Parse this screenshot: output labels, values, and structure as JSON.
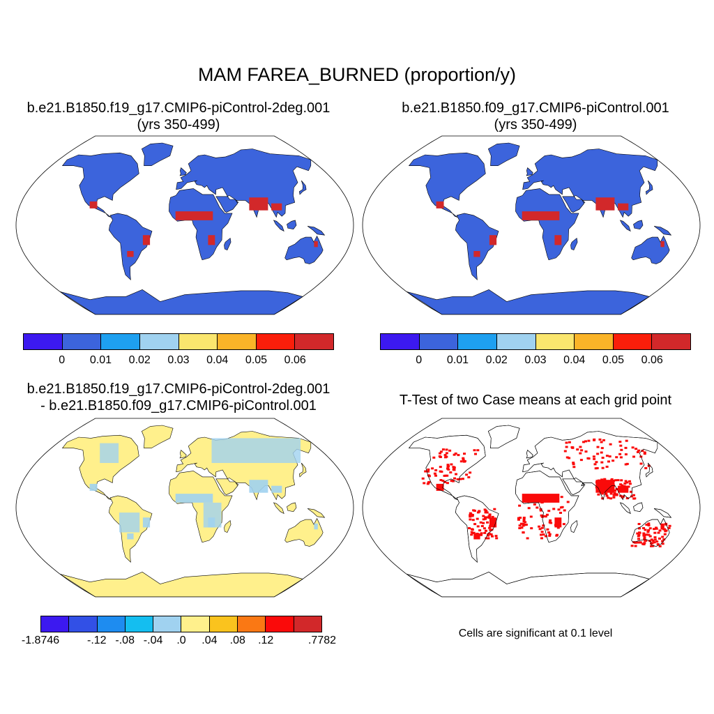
{
  "title": "MAM FAREA_BURNED (proportion/y)",
  "panels": [
    {
      "title_line1": "b.e21.B1850.f19_g17.CMIP6-piControl-2deg.001",
      "title_line2": "(yrs 350-499)"
    },
    {
      "title_line1": "b.e21.B1850.f09_g17.CMIP6-piControl.001",
      "title_line2": "(yrs 350-499)"
    },
    {
      "title_line1": "b.e21.B1850.f19_g17.CMIP6-piControl-2deg.001",
      "title_line2": "- b.e21.B1850.f09_g17.CMIP6-piControl.001"
    },
    {
      "title_line1": "T-Test of two Case means at each grid point"
    }
  ],
  "colorbar_abs": {
    "colors": [
      "#3c19f0",
      "#3c64dc",
      "#1ea0f0",
      "#a0d2f0",
      "#fae66e",
      "#fab428",
      "#fa1e0a",
      "#d2282a"
    ],
    "labels": [
      "0",
      "0.01",
      "0.02",
      "0.03",
      "0.04",
      "0.05",
      "0.06"
    ]
  },
  "colorbar_diff": {
    "colors": [
      "#3c19f0",
      "#3250e6",
      "#1e8cf0",
      "#14bef0",
      "#a0d2f0",
      "#fff08c",
      "#fac31e",
      "#fa7814",
      "#fa0a0a",
      "#d2282a"
    ],
    "labels": [
      "-1.8746",
      "-.12",
      "-.08",
      "-.04",
      ".0",
      ".04",
      ".08",
      ".12",
      ".7782"
    ]
  },
  "significance_note": "Cells are significant at 0.1 level",
  "map_colors": {
    "ocean": "#ffffff",
    "land_low": "#3c64dc",
    "high_fire": "#d2282a",
    "diff_base": "#fff08c",
    "diff_alt": "#a0d2f0",
    "signif": "#fa0a0a"
  }
}
